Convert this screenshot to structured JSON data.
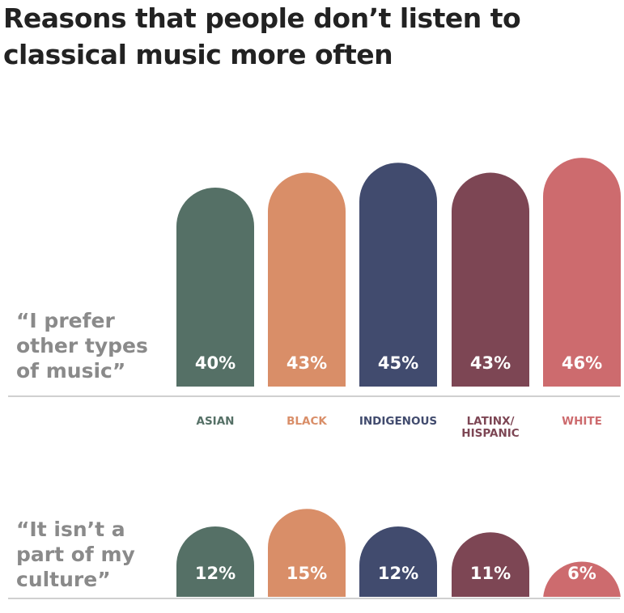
{
  "title": "Reasons that people don’t listen to classical music more often",
  "chart_data": [
    {
      "type": "bar",
      "title": "“I prefer other types of music”",
      "categories": [
        "ASIAN",
        "BLACK",
        "INDIGENOUS",
        "LATINX/ HISPANIC",
        "WHITE"
      ],
      "colors": [
        "#557066",
        "#d98e68",
        "#414b6e",
        "#7d4654",
        "#cd6b6e"
      ],
      "values": [
        40,
        43,
        45,
        43,
        46
      ],
      "value_labels": [
        "40%",
        "43%",
        "45%",
        "43%",
        "46%"
      ]
    },
    {
      "type": "bar",
      "title": "“It isn’t a part of my culture”",
      "colors": [
        "#557066",
        "#d98e68",
        "#414b6e",
        "#7d4654",
        "#cd6b6e"
      ],
      "values": [
        12,
        15,
        12,
        11,
        6
      ],
      "value_labels": [
        "12%",
        "15%",
        "12%",
        "11%",
        "6%"
      ]
    }
  ]
}
